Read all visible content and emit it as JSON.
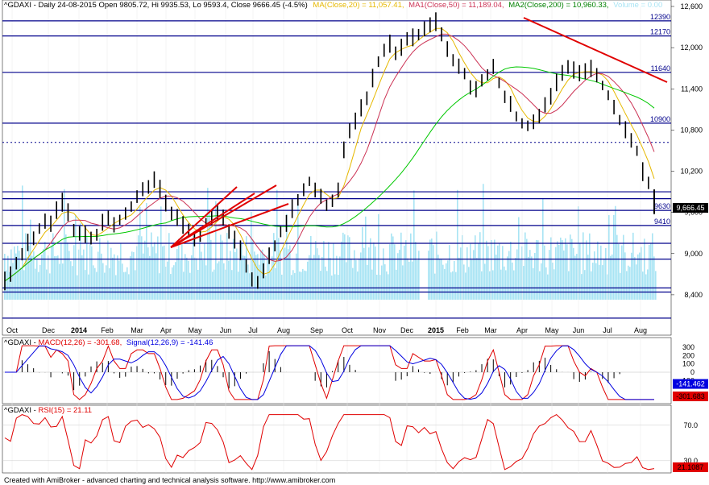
{
  "header": {
    "prefix": "^GDAXI - Daily 24-08-2015 Open 9805.72, Hi 9935.53, Lo 9593.4, Close 9666.45 (-4.5%)",
    "ma20_label": "MA(Close,20) = 11,057.41,",
    "ma50_label": "MA1(Close,50) = 11,189.04,",
    "ma200_label": "MA2(Close,200) = 10,960.33,",
    "volume_label": "Volume = 0.00"
  },
  "macd_header": {
    "prefix": "^GDAXI - ",
    "macd_label": "MACD(12,26) = -301.68,",
    "signal_label": "Signal(12,26,9) = -141.46"
  },
  "rsi_header": {
    "prefix": "^GDAXI - ",
    "rsi_label": "RSI(15) = 21.11"
  },
  "footer": "Created with AmiBroker - advanced charting and technical analysis software. http://www.amibroker.com",
  "colors": {
    "price": "#000000",
    "ma20": "#e6b800",
    "ma50": "#cc3355",
    "ma200": "#00c800",
    "volume": "#a8e4f4",
    "levels": "#00008b",
    "trend": "#e00000",
    "macd": "#e00000",
    "signal": "#0000e0",
    "rsi": "#e00000",
    "last_price_box": "#000000",
    "macd_box": "#0000e0",
    "neg_box": "#e00000"
  },
  "chart_data": [
    {
      "type": "line",
      "title": "^GDAXI - Daily 24-08-2015",
      "ylim": [
        8000,
        12600
      ],
      "yticks": [
        "12,600",
        "12,000",
        "11,400",
        "10,800",
        "10,200",
        "9,600",
        "9,000",
        "8,400"
      ],
      "xticks": [
        "Oct",
        "Dec",
        "2014",
        "Feb",
        "Mar",
        "Apr",
        "May",
        "Jun",
        "Jul",
        "Aug",
        "Sep",
        "Oct",
        "Nov",
        "Dec",
        "2015",
        "Feb",
        "Mar",
        "Apr",
        "May",
        "Jun",
        "Jul",
        "Aug"
      ],
      "horizontal_levels": [
        {
          "value": 12390,
          "label": "12390"
        },
        {
          "value": 12170,
          "label": "12170"
        },
        {
          "value": 11640,
          "label": "11640"
        },
        {
          "value": 10900,
          "label": "10900"
        },
        {
          "value": 9630,
          "label": "9630"
        },
        {
          "value": 9410,
          "label": "9410"
        }
      ],
      "last_price": "9,666.45",
      "series": [
        {
          "name": "Close",
          "values": [
            8600,
            8720,
            8850,
            9000,
            9150,
            9250,
            9350,
            9500,
            9450,
            9650,
            9750,
            9600,
            9350,
            9250,
            9300,
            9200,
            9300,
            9450,
            9550,
            9450,
            9500,
            9600,
            9700,
            9800,
            9900,
            9950,
            10050,
            9950,
            9750,
            9600,
            9500,
            9400,
            9300,
            9250,
            9300,
            9450,
            9550,
            9600,
            9550,
            9300,
            9200,
            9050,
            8850,
            8600,
            8600,
            8750,
            8950,
            9100,
            9300,
            9450,
            9650,
            9800,
            9950,
            10050,
            9900,
            9800,
            9700,
            9800,
            9950,
            10500,
            10750,
            10950,
            11100,
            11300,
            11550,
            11800,
            11950,
            12050,
            11900,
            12000,
            12100,
            12150,
            12200,
            12250,
            12300,
            12370,
            12200,
            12000,
            11800,
            11700,
            11600,
            11450,
            11400,
            11500,
            11600,
            11700,
            11500,
            11300,
            11150,
            11000,
            10900,
            10850,
            10950,
            11000,
            11200,
            11300,
            11500,
            11600,
            11700,
            11650,
            11600,
            11650,
            11700,
            11600,
            11450,
            11300,
            11100,
            10950,
            10800,
            10650,
            10500,
            10200,
            10000,
            9666
          ]
        },
        {
          "name": "MA(Close,20)",
          "values": []
        },
        {
          "name": "MA1(Close,50)",
          "values": []
        },
        {
          "name": "MA2(Close,200)",
          "values": []
        }
      ]
    },
    {
      "type": "line",
      "title": "^GDAXI - MACD(12,26)",
      "yticks": [
        "300",
        "200",
        "100",
        "0",
        "-100"
      ],
      "last_values": [
        "-141.462",
        "-301.683"
      ],
      "series": [
        {
          "name": "MACD(12,26)",
          "last": -301.68
        },
        {
          "name": "Signal(12,26,9)",
          "last": -141.46
        }
      ]
    },
    {
      "type": "line",
      "title": "^GDAXI - RSI(15)",
      "yticks": [
        "70.0",
        "30.0"
      ],
      "last_value": "21.1087",
      "series": [
        {
          "name": "RSI(15)",
          "last": 21.11
        }
      ]
    }
  ]
}
